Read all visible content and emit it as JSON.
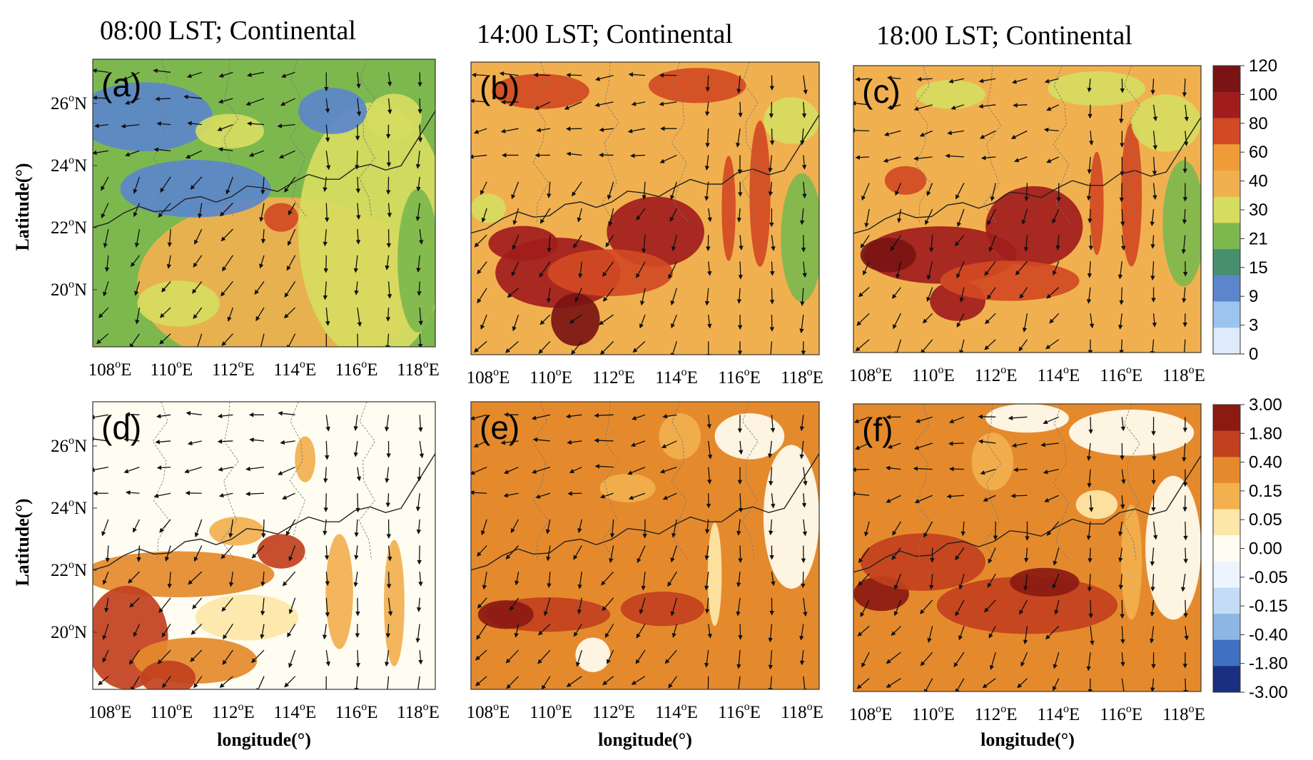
{
  "panels": [
    {
      "label": "(a)",
      "title": "08:00 LST; Continental",
      "field": "a"
    },
    {
      "label": "(b)",
      "title": "14:00 LST; Continental",
      "field": "b"
    },
    {
      "label": "(c)",
      "title": "18:00 LST; Continental",
      "field": "c"
    },
    {
      "label": "(d)",
      "title": "",
      "field": "d"
    },
    {
      "label": "(e)",
      "title": "",
      "field": "e"
    },
    {
      "label": "(f)",
      "title": "",
      "field": "f"
    }
  ],
  "x_ticks": [
    "108",
    "110",
    "112",
    "114",
    "116",
    "118"
  ],
  "y_ticks": [
    "26",
    "24",
    "22",
    "20"
  ],
  "x_unit": "E",
  "y_unit": "N",
  "degree_sup": "o",
  "ylabel": "Latitude(°)",
  "xlabel": "longitude(°)",
  "colorbar_top": {
    "labels": [
      "120",
      "100",
      "80",
      "60",
      "40",
      "30",
      "21",
      "15",
      "9",
      "3",
      "0"
    ],
    "colors": [
      "#7a1414",
      "#a11d1d",
      "#d24a23",
      "#ef9b38",
      "#f1b04f",
      "#d6dc5f",
      "#7db84e",
      "#46906e",
      "#5b86cc",
      "#9cc4ee",
      "#dfebfb"
    ]
  },
  "colorbar_bottom": {
    "labels": [
      "3.00",
      "1.80",
      "0.40",
      "0.15",
      "0.05",
      "0.00",
      "-0.05",
      "-0.15",
      "-0.40",
      "-1.80",
      "-3.00"
    ],
    "colors": [
      "#8b1a12",
      "#c2401e",
      "#e58a2c",
      "#f2b04f",
      "#fde7a8",
      "#fffdf1",
      "#eef4ff",
      "#c5dcf6",
      "#8db6e5",
      "#3f70c2",
      "#1a2f80"
    ]
  }
}
